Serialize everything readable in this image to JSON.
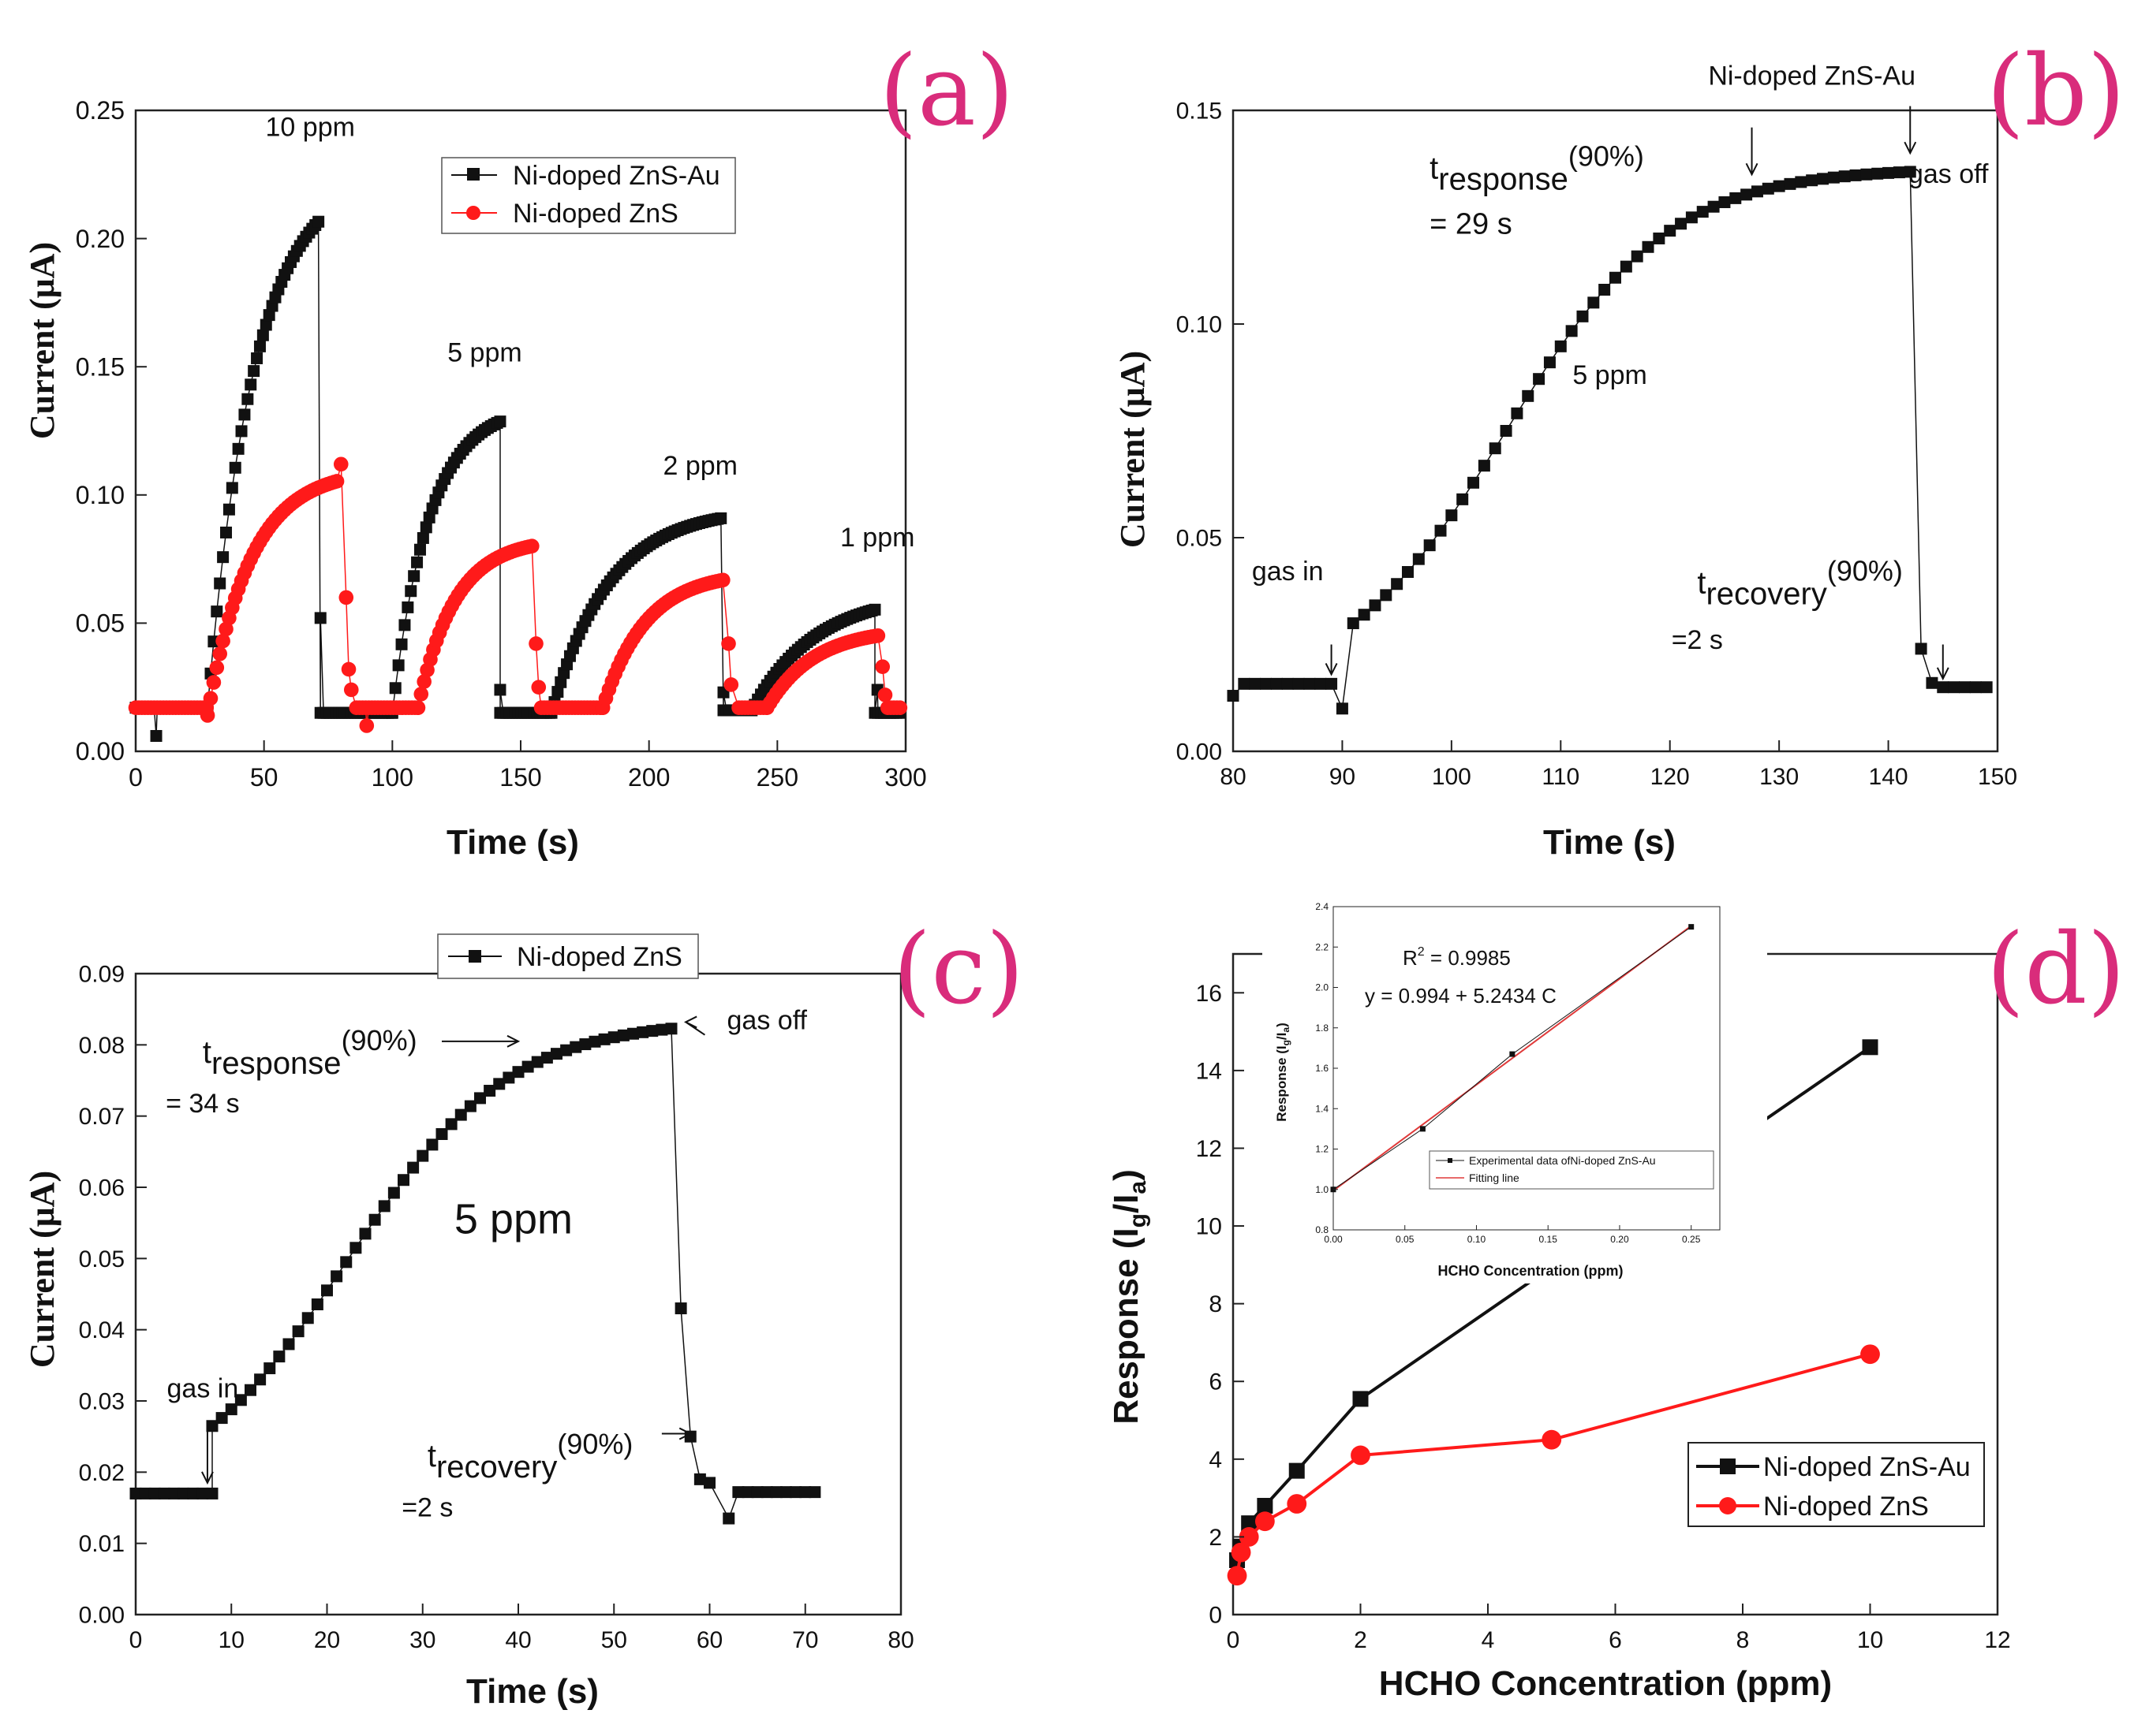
{
  "figure_label": "Four-panel HCHO gas sensing figure",
  "colors": {
    "ZnSAu": "#111111",
    "ZnS": "#ff1a1a",
    "panel_label": "#d92c7b",
    "fit_line": "#e03a3a"
  },
  "chart_data": [
    {
      "id": "a",
      "type": "scatter",
      "panel_label": "(a)",
      "xlabel": "Time (s)",
      "ylabel": "Current (μA)",
      "xlim": [
        0,
        300
      ],
      "ylim": [
        0,
        0.25
      ],
      "xticks": [
        0,
        50,
        100,
        150,
        200,
        250,
        300
      ],
      "yticks": [
        0.0,
        0.05,
        0.1,
        0.15,
        0.2,
        0.25
      ],
      "x_decimals": 0,
      "y_decimals": 2,
      "legend": [
        {
          "name": "Ni-doped ZnS-Au",
          "marker": "square",
          "color": "#111111"
        },
        {
          "name": "Ni-doped ZnS",
          "marker": "circle",
          "color": "#ff1a1a"
        }
      ],
      "legend_position": "top-center",
      "annotations": [
        {
          "text": "10 ppm",
          "x": 68,
          "y": 0.24
        },
        {
          "text": "5 ppm",
          "x": 136,
          "y": 0.152
        },
        {
          "text": "2 ppm",
          "x": 220,
          "y": 0.108
        },
        {
          "text": "1 ppm",
          "x": 289,
          "y": 0.08
        }
      ],
      "series": [
        {
          "name": "Ni-doped ZnS-Au",
          "marker": "square",
          "color": "#111111",
          "spacing": 1.2,
          "segments": [
            {
              "x0": 0,
              "x1": 28,
              "type": "flat",
              "v": 0.017
            },
            {
              "x0": 28,
              "x1": 72,
              "type": "rise",
              "a": 0.017,
              "b": 0.226,
              "k": 0.055
            },
            {
              "x0": 72,
              "x1": 100,
              "type": "flat",
              "v": 0.015
            },
            {
              "x0": 100,
              "x1": 142,
              "type": "rise",
              "a": 0.015,
              "b": 0.135,
              "k": 0.07
            },
            {
              "x0": 142,
              "x1": 162,
              "type": "flat",
              "v": 0.015
            },
            {
              "x0": 162,
              "x1": 229,
              "type": "rise",
              "a": 0.015,
              "b": 0.095,
              "k": 0.045
            },
            {
              "x0": 229,
              "x1": 240,
              "type": "flat",
              "v": 0.016
            },
            {
              "x0": 240,
              "x1": 288,
              "type": "rise",
              "a": 0.016,
              "b": 0.062,
              "k": 0.04
            },
            {
              "x0": 288,
              "x1": 298,
              "type": "flat",
              "v": 0.015
            }
          ],
          "extra": [
            {
              "x": 8,
              "y": 0.006
            },
            {
              "x": 72,
              "y": 0.052
            },
            {
              "x": 142,
              "y": 0.024
            },
            {
              "x": 229,
              "y": 0.023
            },
            {
              "x": 289,
              "y": 0.024
            }
          ]
        },
        {
          "name": "Ni-doped ZnS",
          "marker": "circle",
          "color": "#ff1a1a",
          "spacing": 1.2,
          "segments": [
            {
              "x0": 0,
              "x1": 28,
              "type": "flat",
              "v": 0.017
            },
            {
              "x0": 28,
              "x1": 79,
              "type": "rise",
              "a": 0.014,
              "b": 0.11,
              "k": 0.06
            },
            {
              "x0": 86,
              "x1": 110,
              "type": "flat",
              "v": 0.017
            },
            {
              "x0": 110,
              "x1": 155,
              "type": "rise",
              "a": 0.017,
              "b": 0.083,
              "k": 0.07
            },
            {
              "x0": 158,
              "x1": 182,
              "type": "flat",
              "v": 0.017
            },
            {
              "x0": 182,
              "x1": 229,
              "type": "rise",
              "a": 0.017,
              "b": 0.07,
              "k": 0.06
            },
            {
              "x0": 235,
              "x1": 246,
              "type": "flat",
              "v": 0.017
            },
            {
              "x0": 246,
              "x1": 290,
              "type": "rise",
              "a": 0.017,
              "b": 0.048,
              "k": 0.055
            },
            {
              "x0": 293,
              "x1": 298,
              "type": "flat",
              "v": 0.017
            }
          ],
          "extra": [
            {
              "x": 80,
              "y": 0.112
            },
            {
              "x": 82,
              "y": 0.06
            },
            {
              "x": 83,
              "y": 0.032
            },
            {
              "x": 84,
              "y": 0.024
            },
            {
              "x": 90,
              "y": 0.01
            },
            {
              "x": 156,
              "y": 0.042
            },
            {
              "x": 157,
              "y": 0.025
            },
            {
              "x": 231,
              "y": 0.042
            },
            {
              "x": 232,
              "y": 0.026
            },
            {
              "x": 291,
              "y": 0.033
            },
            {
              "x": 292,
              "y": 0.022
            }
          ]
        }
      ]
    },
    {
      "id": "b",
      "type": "scatter",
      "panel_label": "(b)",
      "xlabel": "Time (s)",
      "ylabel": "Current (μA)",
      "xlim": [
        80,
        150
      ],
      "ylim": [
        0,
        0.15
      ],
      "xticks": [
        80,
        90,
        100,
        110,
        120,
        130,
        140,
        150
      ],
      "yticks": [
        0.0,
        0.05,
        0.1,
        0.15
      ],
      "x_decimals": 0,
      "y_decimals": 2,
      "annotations": [
        {
          "text": "Ni-doped ZnS-Au",
          "x": 133,
          "y": 0.156
        },
        {
          "text": "gas off",
          "x": 145.5,
          "y": 0.133
        },
        {
          "text": "5 ppm",
          "x": 114.5,
          "y": 0.086
        },
        {
          "text": "gas in",
          "x": 85,
          "y": 0.04
        },
        {
          "text": "=2 s",
          "x": 122.5,
          "y": 0.024
        }
      ],
      "rich_text": [
        {
          "main": "t",
          "sub": "response",
          "rest": "(90%)",
          "x": 98,
          "y": 0.134,
          "line2": "= 29 s"
        },
        {
          "main": "t",
          "sub": "recovery",
          "rest": "(90%)",
          "x": 122.5,
          "y": 0.037
        }
      ],
      "arrows": [
        {
          "x": 89,
          "y1": 0.025,
          "y2": 0.018
        },
        {
          "x": 127.5,
          "y1": 0.146,
          "y2": 0.135
        },
        {
          "x": 142,
          "y1": 0.151,
          "y2": 0.14
        },
        {
          "x": 145,
          "y1": 0.025,
          "y2": 0.017
        }
      ],
      "series": [
        {
          "name": "Ni-doped ZnS-Au",
          "marker": "square",
          "color": "#111111",
          "spacing": 1,
          "segments": [
            {
              "x0": 81,
              "x1": 89,
              "type": "flat",
              "v": 0.0158
            },
            {
              "x0": 91,
              "x1": 142,
              "type": "rise",
              "a": 0.0135,
              "b": 0.1365,
              "k": 0.0,
              "sig": true,
              "mid": 105,
              "w": 7.5
            },
            {
              "x0": 145,
              "x1": 149,
              "type": "flat",
              "v": 0.015
            }
          ],
          "extra": [
            {
              "x": 80,
              "y": 0.013
            },
            {
              "x": 90,
              "y": 0.01
            },
            {
              "x": 143,
              "y": 0.024
            },
            {
              "x": 144,
              "y": 0.016
            }
          ]
        }
      ]
    },
    {
      "id": "c",
      "type": "scatter",
      "panel_label": "(c)",
      "xlabel": "Time (s)",
      "ylabel": "Current (μA)",
      "xlim": [
        0,
        80
      ],
      "ylim": [
        0,
        0.09
      ],
      "xticks": [
        0,
        10,
        20,
        30,
        40,
        50,
        60,
        70,
        80
      ],
      "yticks": [
        0.0,
        0.01,
        0.02,
        0.03,
        0.04,
        0.05,
        0.06,
        0.07,
        0.08,
        0.09
      ],
      "x_decimals": 0,
      "y_decimals": 2,
      "legend": [
        {
          "name": "Ni-doped ZnS",
          "marker": "square",
          "color": "#111111"
        }
      ],
      "legend_position": "top-center",
      "annotations": [
        {
          "text": "gas off",
          "x": 66,
          "y": 0.0822
        },
        {
          "text": "5 ppm",
          "x": 39.5,
          "y": 0.0535
        },
        {
          "text": "gas in",
          "x": 7,
          "y": 0.0305
        },
        {
          "text": "= 34 s",
          "x": 7,
          "y": 0.0705
        },
        {
          "text": "=2 s",
          "x": 30.5,
          "y": 0.0138
        }
      ],
      "rich_text": [
        {
          "main": "t",
          "sub": "response",
          "rest": "(90%)",
          "x": 7,
          "y": 0.0775
        },
        {
          "main": "t",
          "sub": "recovery",
          "rest": "(90%)",
          "x": 30.5,
          "y": 0.0208
        }
      ],
      "arrows": [
        {
          "x": 7.5,
          "y1": 0.0265,
          "y2": 0.0185
        }
      ],
      "series": [
        {
          "name": "Ni-doped ZnS",
          "marker": "square",
          "color": "#111111",
          "spacing": 1,
          "segments": [
            {
              "x0": 0,
              "x1": 8,
              "type": "flat",
              "v": 0.017
            },
            {
              "x0": 8,
              "x1": 56,
              "type": "rise",
              "a": 0.0155,
              "b": 0.0835,
              "k": 0.0,
              "sig": true,
              "mid": 22,
              "w": 8.5
            },
            {
              "x0": 63,
              "x1": 71,
              "type": "flat",
              "v": 0.0172
            }
          ],
          "extra": [
            {
              "x": 57,
              "y": 0.043
            },
            {
              "x": 58,
              "y": 0.025
            },
            {
              "x": 59,
              "y": 0.019
            },
            {
              "x": 60,
              "y": 0.0185
            },
            {
              "x": 62,
              "y": 0.0135
            }
          ]
        }
      ]
    },
    {
      "id": "d",
      "type": "line",
      "panel_label": "(d)",
      "xlabel": "HCHO Concentration (ppm)",
      "ylabel": "Response (Ig/Ia)",
      "xlim": [
        0,
        12
      ],
      "ylim": [
        0,
        17
      ],
      "xticks": [
        0,
        2,
        4,
        6,
        8,
        10,
        12
      ],
      "yticks": [
        0,
        2,
        4,
        6,
        8,
        10,
        12,
        14,
        16
      ],
      "x_decimals": 0,
      "y_decimals": 0,
      "legend": [
        {
          "name": "Ni-doped ZnS-Au",
          "marker": "square",
          "color": "#111111"
        },
        {
          "name": "Ni-doped ZnS",
          "marker": "circle",
          "color": "#ff1a1a"
        }
      ],
      "legend_position": "bottom-right",
      "series": [
        {
          "name": "Ni-doped ZnS-Au",
          "marker": "square",
          "color": "#111111",
          "x": [
            0.0625,
            0.125,
            0.25,
            0.5,
            1,
            2,
            10
          ],
          "y": [
            1.4,
            1.75,
            2.35,
            2.8,
            3.7,
            5.55,
            14.6
          ]
        },
        {
          "name": "Ni-doped ZnS",
          "marker": "circle",
          "color": "#ff1a1a",
          "x": [
            0.0625,
            0.125,
            0.25,
            0.5,
            1,
            2,
            5,
            10
          ],
          "y": [
            1.0,
            1.6,
            2.0,
            2.4,
            2.85,
            4.1,
            4.5,
            6.7
          ]
        }
      ],
      "inset": {
        "type": "line",
        "xlabel": "HCHO Concentration (ppm)",
        "ylabel": "Response (Ig/Ia)",
        "xlim": [
          0,
          0.27
        ],
        "ylim": [
          0.8,
          2.4
        ],
        "xticks": [
          0.0,
          0.05,
          0.1,
          0.15,
          0.2,
          0.25
        ],
        "yticks": [
          0.8,
          1.0,
          1.2,
          1.4,
          1.6,
          1.8,
          2.0,
          2.2,
          2.4
        ],
        "x_decimals": 2,
        "y_decimals": 1,
        "r2_label": "R",
        "r2_value": " = 0.9985",
        "equation": "y = 0.994 + 5.2434 C",
        "legend": [
          {
            "name": "Experimental data ofNi-doped ZnS-Au",
            "marker": "square",
            "color": "#111111"
          },
          {
            "name": "Fitting line",
            "marker": "none",
            "color": "#e03a3a"
          }
        ],
        "series": [
          {
            "name": "Experimental data",
            "x": [
              0.0,
              0.0625,
              0.125,
              0.25
            ],
            "y": [
              1.0,
              1.3,
              1.67,
              2.3
            ]
          }
        ],
        "fit": {
          "intercept": 0.994,
          "slope": 5.2434,
          "x0": 0.0,
          "x1": 0.25
        }
      }
    }
  ]
}
